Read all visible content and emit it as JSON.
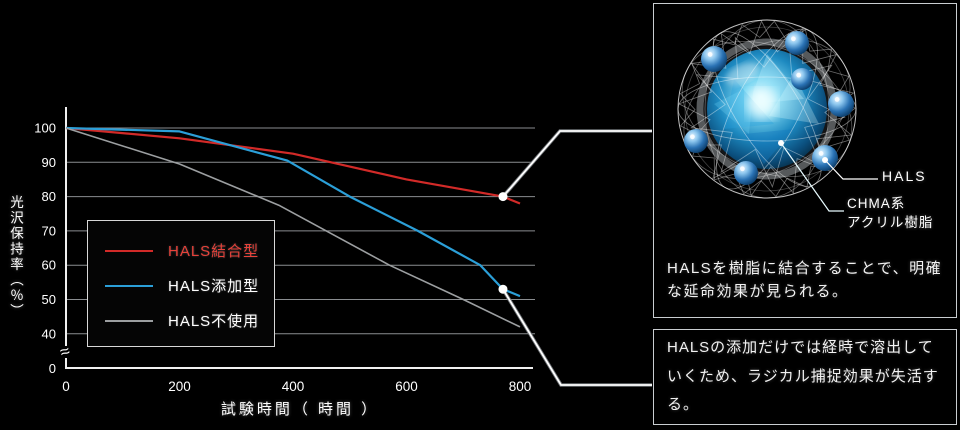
{
  "chart_data": {
    "type": "line",
    "title": "",
    "xlabel": "試験時間（ 時間 ）",
    "ylabel": "光沢保持率（％）",
    "x_ticks": [
      0,
      200,
      400,
      600,
      800
    ],
    "y_ticks": [
      0,
      40,
      50,
      60,
      70,
      80,
      90,
      100
    ],
    "axis_break_symbol": "≈",
    "xlim": [
      0,
      830
    ],
    "ylim": [
      36,
      100
    ],
    "grid": true,
    "legend_position": "lower-left-box",
    "series": [
      {
        "name": "HALS結合型",
        "color": "#d22a28",
        "label_color": "#e8423a",
        "x": [
          0,
          200,
          400,
          600,
          770,
          800
        ],
        "y": [
          100,
          97,
          92.5,
          85,
          80,
          78
        ],
        "marker_at": {
          "x": 770,
          "y": 80
        }
      },
      {
        "name": "HALS添加型",
        "color": "#2b9fd8",
        "label_color": "#ffffff",
        "x": [
          0,
          200,
          390,
          500,
          620,
          730,
          770,
          800
        ],
        "y": [
          100,
          99,
          90.5,
          80,
          70,
          60,
          53,
          51
        ],
        "marker_at": {
          "x": 770,
          "y": 53
        }
      },
      {
        "name": "HALS不使用",
        "color": "#9c9fa1",
        "label_color": "#ffffff",
        "x": [
          0,
          200,
          375,
          570,
          700,
          800
        ],
        "y": [
          100,
          89.5,
          77.5,
          60,
          50,
          42
        ],
        "marker_at": null
      }
    ]
  },
  "panel_molecule": {
    "hals_label": "HALS",
    "resin_label_line1": "CHMA系",
    "resin_label_line2": "アクリル樹脂",
    "caption": "HALSを樹脂に結合することで、明確な延命効果が見られる。"
  },
  "panel_note": {
    "caption": "HALSの添加だけでは経時で溶出していくため、ラジカル捕捉効果が失活する。"
  },
  "colors": {
    "background": "#000000",
    "grid": "#8a8d90",
    "axis": "#f0f0f0",
    "tick_text": "#ffffff",
    "callout": "#ffffff",
    "marker": "#ffffff",
    "panel_border": "#c9cdd1",
    "legend_border": "#d8d8d8",
    "caption_text": "#f2f2f2"
  }
}
